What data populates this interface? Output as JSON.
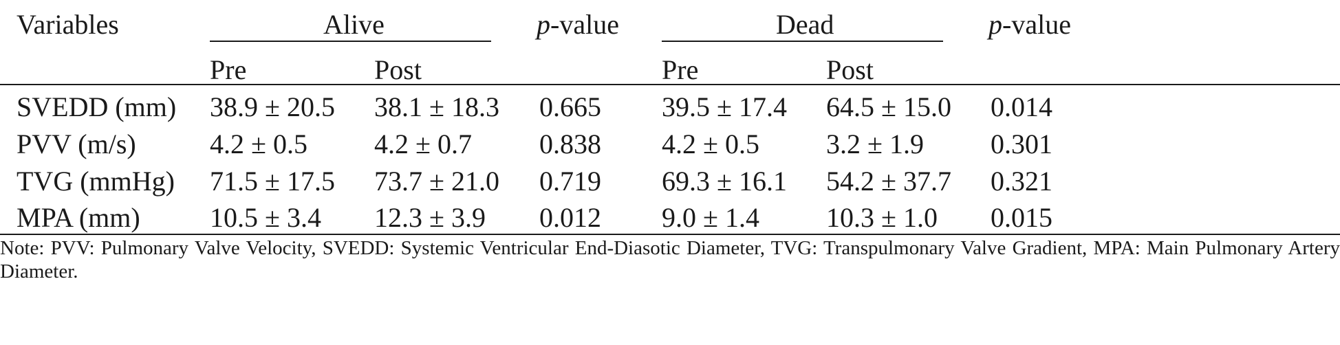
{
  "table": {
    "header": {
      "variables": "Variables",
      "alive": "Alive",
      "dead": "Dead",
      "p_italic": "p",
      "p_rest": "-value",
      "pre": "Pre",
      "post": "Post"
    },
    "rows": [
      {
        "variable": "SVEDD (mm)",
        "alive_pre": "38.9 ± 20.5",
        "alive_post": "38.1 ± 18.3",
        "alive_p": "0.665",
        "dead_pre": "39.5 ± 17.4",
        "dead_post": "64.5 ± 15.0",
        "dead_p": "0.014"
      },
      {
        "variable": "PVV (m/s)",
        "alive_pre": "4.2 ± 0.5",
        "alive_post": "4.2 ± 0.7",
        "alive_p": "0.838",
        "dead_pre": "4.2 ± 0.5",
        "dead_post": "3.2 ± 1.9",
        "dead_p": "0.301"
      },
      {
        "variable": "TVG (mmHg)",
        "alive_pre": "71.5 ± 17.5",
        "alive_post": "73.7 ± 21.0",
        "alive_p": "0.719",
        "dead_pre": "69.3 ± 16.1",
        "dead_post": "54.2 ± 37.7",
        "dead_p": "0.321"
      },
      {
        "variable": "MPA (mm)",
        "alive_pre": "10.5 ± 3.4",
        "alive_post": "12.3 ± 3.9",
        "alive_p": "0.012",
        "dead_pre": "9.0 ± 1.4",
        "dead_post": "10.3 ± 1.0",
        "dead_p": "0.015"
      }
    ],
    "note": "Note: PVV: Pulmonary Valve Velocity, SVEDD: Systemic Ventricular End-Diasotic Diameter, TVG: Transpulmonary Valve Gradient, MPA: Main Pulmonary Artery Diameter."
  }
}
